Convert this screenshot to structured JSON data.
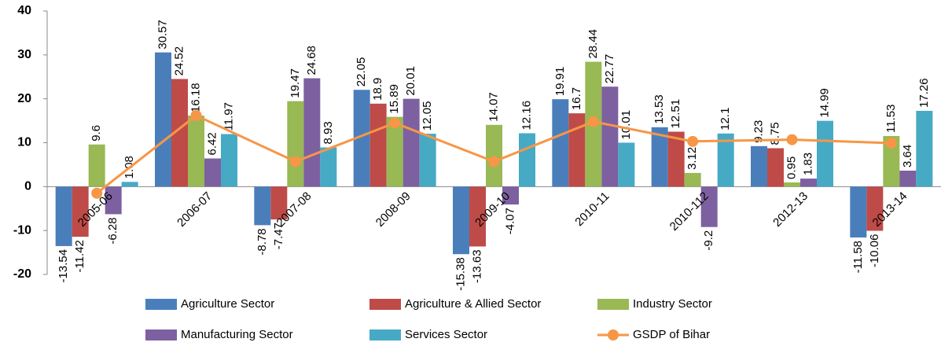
{
  "chart_data": {
    "type": "bar",
    "categories": [
      "2005-06",
      "2006-07",
      "2007-08",
      "2008-09",
      "2009-10",
      "2010-11",
      "2010-112",
      "2012-13",
      "2013-14"
    ],
    "series": [
      {
        "name": "Agriculture Sector",
        "color": "#4a7ebb",
        "values": [
          -13.54,
          30.57,
          -8.78,
          22.05,
          -15.38,
          19.91,
          13.53,
          9.23,
          -11.58
        ]
      },
      {
        "name": "Agriculture & Allied Sector",
        "color": "#be4b48",
        "values": [
          -11.42,
          24.52,
          -7.47,
          18.9,
          -13.63,
          16.7,
          12.51,
          8.75,
          -10.06
        ]
      },
      {
        "name": "Industry Sector",
        "color": "#98b954",
        "values": [
          9.6,
          16.18,
          19.47,
          15.89,
          14.07,
          28.44,
          3.12,
          0.95,
          11.53
        ]
      },
      {
        "name": "Manufacturing Sector",
        "color": "#7d60a0",
        "values": [
          -6.28,
          6.42,
          24.68,
          20.01,
          -4.07,
          22.77,
          -9.2,
          1.83,
          3.64
        ]
      },
      {
        "name": "Services Sector",
        "color": "#46aac5",
        "values": [
          1.08,
          11.97,
          8.93,
          12.05,
          12.16,
          10.01,
          12.1,
          14.99,
          17.26
        ]
      },
      {
        "name": "GSDP of Bihar",
        "color": "#f79646",
        "type": "line",
        "values": [
          -1.5,
          16.2,
          5.7,
          14.5,
          5.7,
          14.8,
          10.3,
          10.7,
          9.9
        ]
      }
    ],
    "ylim": [
      -20,
      40
    ],
    "yticks": [
      -20,
      -10,
      0,
      10,
      20,
      30,
      40
    ],
    "grid": false
  }
}
